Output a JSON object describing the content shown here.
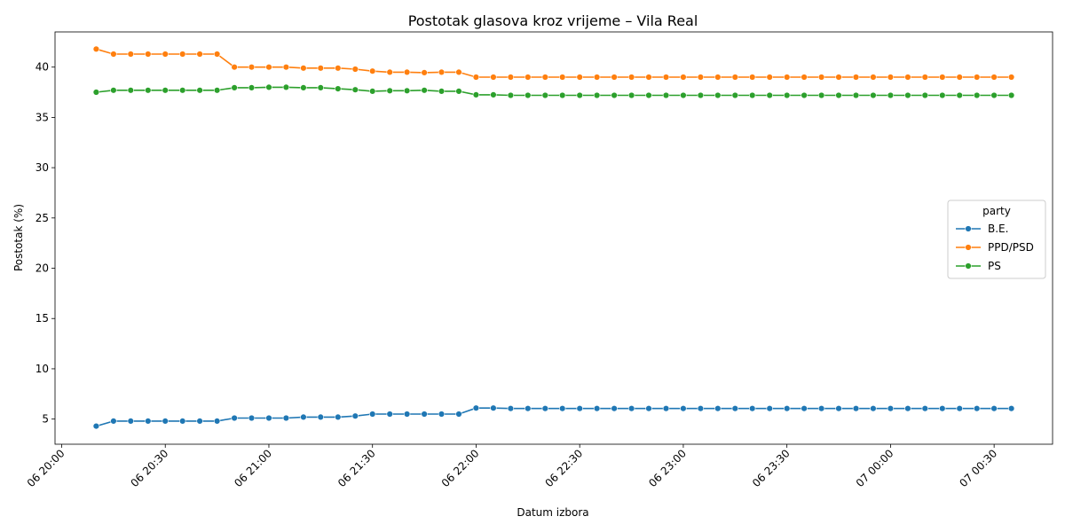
{
  "chart_data": {
    "type": "line",
    "title": "Postotak glasova kroz vrijeme – Vila Real",
    "xlabel": "Datum izbora",
    "ylabel": "Postotak (%)",
    "x": [
      "20:10",
      "20:15",
      "20:20",
      "20:25",
      "20:30",
      "20:35",
      "20:40",
      "20:45",
      "20:50",
      "20:55",
      "21:00",
      "21:05",
      "21:10",
      "21:15",
      "21:20",
      "21:25",
      "21:30",
      "21:35",
      "21:40",
      "21:45",
      "21:50",
      "21:55",
      "22:00",
      "22:05",
      "22:10",
      "22:15",
      "22:20",
      "22:25",
      "22:30",
      "22:35",
      "22:40",
      "22:45",
      "22:50",
      "22:55",
      "23:00",
      "23:05",
      "23:10",
      "23:15",
      "23:20",
      "23:25",
      "23:30",
      "23:35",
      "23:40",
      "23:45",
      "23:50",
      "23:55",
      "00:00",
      "00:05",
      "00:10",
      "00:15",
      "00:20",
      "00:25",
      "00:30",
      "00:35"
    ],
    "x_ticks": [
      "06 20:00",
      "06 20:30",
      "06 21:00",
      "06 21:30",
      "06 22:00",
      "06 22:30",
      "06 23:00",
      "06 23:30",
      "07 00:00",
      "07 00:30"
    ],
    "y_ticks": [
      "5",
      "10",
      "15",
      "20",
      "25",
      "30",
      "35",
      "40"
    ],
    "ylim": [
      2.5,
      43.5
    ],
    "legend_title": "party",
    "legend_position": "center-right",
    "grid": false,
    "series": [
      {
        "name": "B.E.",
        "color": "#1f77b4",
        "values": [
          4.3,
          4.8,
          4.8,
          4.8,
          4.8,
          4.8,
          4.8,
          4.8,
          5.1,
          5.1,
          5.1,
          5.1,
          5.2,
          5.2,
          5.2,
          5.3,
          5.5,
          5.5,
          5.5,
          5.5,
          5.5,
          5.5,
          6.1,
          6.1,
          6.05,
          6.05,
          6.05,
          6.05,
          6.05,
          6.05,
          6.05,
          6.05,
          6.05,
          6.05,
          6.05,
          6.05,
          6.05,
          6.05,
          6.05,
          6.05,
          6.05,
          6.05,
          6.05,
          6.05,
          6.05,
          6.05,
          6.05,
          6.05,
          6.05,
          6.05,
          6.05,
          6.05,
          6.05,
          6.05
        ]
      },
      {
        "name": "PPD/PSD",
        "color": "#ff7f0e",
        "values": [
          41.8,
          41.3,
          41.3,
          41.3,
          41.3,
          41.3,
          41.3,
          41.3,
          40.0,
          40.0,
          40.0,
          40.0,
          39.9,
          39.9,
          39.9,
          39.8,
          39.6,
          39.5,
          39.5,
          39.45,
          39.5,
          39.5,
          39.0,
          39.0,
          39.0,
          39.0,
          39.0,
          39.0,
          39.0,
          39.0,
          39.0,
          39.0,
          39.0,
          39.0,
          39.0,
          39.0,
          39.0,
          39.0,
          39.0,
          39.0,
          39.0,
          39.0,
          39.0,
          39.0,
          39.0,
          39.0,
          39.0,
          39.0,
          39.0,
          39.0,
          39.0,
          39.0,
          39.0,
          39.0
        ]
      },
      {
        "name": "PS",
        "color": "#2ca02c",
        "values": [
          37.5,
          37.7,
          37.7,
          37.7,
          37.7,
          37.7,
          37.7,
          37.7,
          37.95,
          37.95,
          38.0,
          38.0,
          37.95,
          37.95,
          37.85,
          37.75,
          37.6,
          37.65,
          37.65,
          37.7,
          37.6,
          37.6,
          37.25,
          37.25,
          37.2,
          37.2,
          37.2,
          37.2,
          37.2,
          37.2,
          37.2,
          37.2,
          37.2,
          37.2,
          37.2,
          37.2,
          37.2,
          37.2,
          37.2,
          37.2,
          37.2,
          37.2,
          37.2,
          37.2,
          37.2,
          37.2,
          37.2,
          37.2,
          37.2,
          37.2,
          37.2,
          37.2,
          37.2,
          37.2
        ]
      }
    ]
  }
}
